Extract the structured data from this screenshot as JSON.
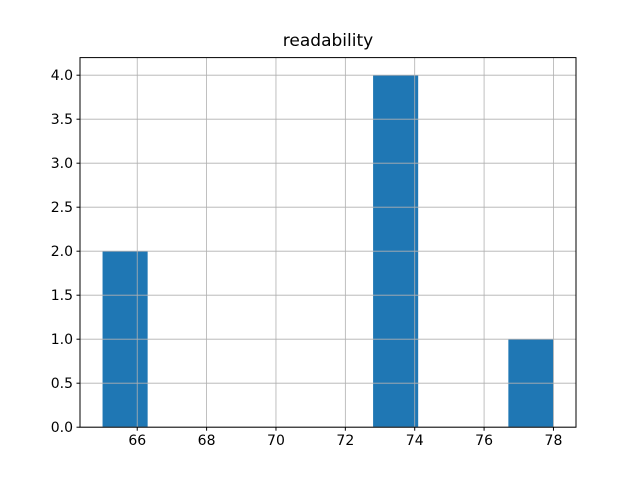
{
  "chart_data": {
    "type": "bar",
    "subtype": "histogram",
    "title": "readability",
    "bin_edges": [
      65.0,
      66.3,
      67.6,
      68.9,
      70.2,
      71.5,
      72.8,
      74.1,
      75.4,
      76.7,
      78.0
    ],
    "counts": [
      2,
      0,
      0,
      0,
      0,
      0,
      4,
      0,
      0,
      1
    ],
    "xlabel": "",
    "ylabel": "",
    "xlim": [
      64.35,
      78.65
    ],
    "ylim": [
      0,
      4.2
    ],
    "xtick_values": [
      66,
      68,
      70,
      72,
      74,
      76,
      78
    ],
    "xtick_labels": [
      "66",
      "68",
      "70",
      "72",
      "74",
      "76",
      "78"
    ],
    "ytick_values": [
      0.0,
      0.5,
      1.0,
      1.5,
      2.0,
      2.5,
      3.0,
      3.5,
      4.0
    ],
    "ytick_labels": [
      "0.0",
      "0.5",
      "1.0",
      "1.5",
      "2.0",
      "2.5",
      "3.0",
      "3.5",
      "4.0"
    ],
    "grid": true,
    "legend": false,
    "bar_color": "#1f77b4",
    "grid_color": "#b0b0b0",
    "spine_color": "#000000",
    "tick_color": "#000000",
    "background_color": "#ffffff"
  }
}
